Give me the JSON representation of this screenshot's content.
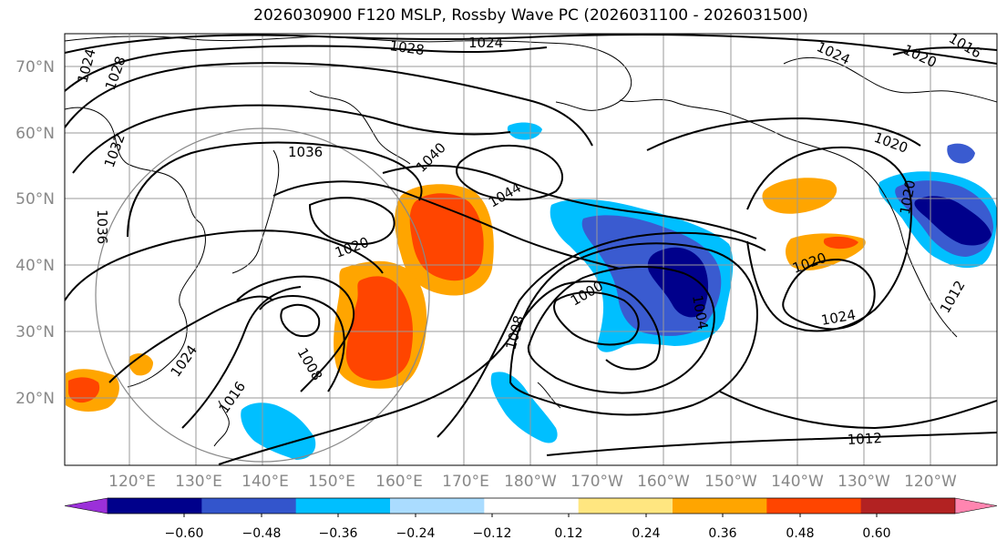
{
  "title": "2026030900 F120 MSLP, Rossby Wave PC (2026031100 - 2026031500)",
  "lat_labels": [
    "70°N",
    "60°N",
    "50°N",
    "40°N",
    "30°N",
    "20°N"
  ],
  "lon_labels": [
    "120°E",
    "130°E",
    "140°E",
    "150°E",
    "160°E",
    "170°E",
    "180°W",
    "170°W",
    "160°W",
    "150°W",
    "140°W",
    "130°W",
    "120°W"
  ],
  "contour_labels": [
    "1024",
    "1028",
    "1024",
    "1016",
    "1020",
    "1024",
    "1028",
    "1032",
    "1036",
    "1036",
    "1040",
    "1044",
    "1020",
    "1020",
    "1024",
    "1016",
    "1008",
    "1000",
    "1008",
    "1004",
    "1020",
    "1024",
    "1012",
    "1020",
    "1012"
  ],
  "colorbar": {
    "tick_labels": [
      "−0.60",
      "−0.48",
      "−0.36",
      "−0.24",
      "−0.12",
      "0.12",
      "0.24",
      "0.36",
      "0.48",
      "0.60"
    ],
    "bounds": [
      -0.6,
      -0.48,
      -0.36,
      -0.24,
      -0.12,
      0.12,
      0.24,
      0.36,
      0.48,
      0.6
    ],
    "colors": [
      "#9b30d9",
      "#00008b",
      "#3355cc",
      "#00bfff",
      "#aadcff",
      "#ffffff",
      "#ffe680",
      "#ffa500",
      "#ff4500",
      "#b22222",
      "#ff85b0"
    ]
  },
  "anomaly_colors": {
    "neg_strong": "#00008b",
    "neg_med": "#3a5bd0",
    "neg_light": "#00bfff",
    "pos_light": "#ffa500",
    "pos_med": "#ff4500"
  }
}
